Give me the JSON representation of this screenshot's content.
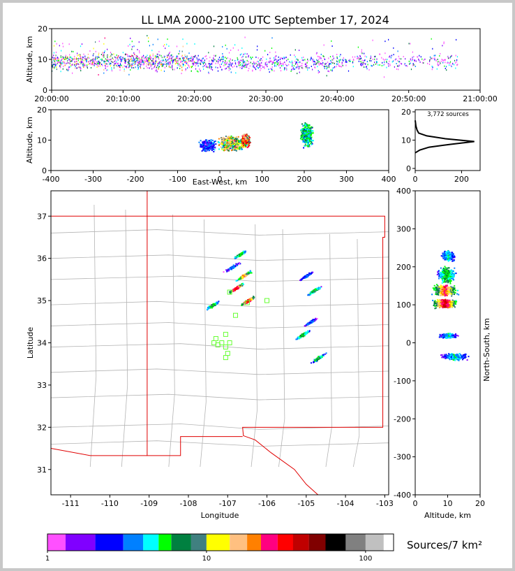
{
  "title": "LL LMA 2000-2100 UTC September 17, 2024",
  "colorbar": {
    "label": "Sources/7 km²",
    "tick_labels": [
      "1",
      "10",
      "100"
    ],
    "colors": [
      "#ff50ff",
      "#8000ff",
      "#0000ff",
      "#0080ff",
      "#00ffff",
      "#00ff00",
      "#008040",
      "#408080",
      "#ffff00",
      "#ffc080",
      "#ff8000",
      "#ff0080",
      "#ff0000",
      "#c00000",
      "#800000",
      "#000000",
      "#808080",
      "#c0c0c0",
      "#ffffff"
    ]
  },
  "chart_data": [
    {
      "type": "scatter",
      "panel": "time-height",
      "ylabel": "Altitude, km",
      "xlabel": "",
      "x_tick_labels": [
        "20:00:00",
        "20:10:00",
        "20:20:00",
        "20:30:00",
        "20:40:00",
        "20:50:00",
        "21:00:00"
      ],
      "xlim": [
        "20:00:00",
        "21:00:00"
      ],
      "ylim": [
        0,
        20
      ],
      "y_ticks": [
        0,
        10,
        20
      ],
      "grid": false,
      "activity_minutes": [
        {
          "start": 0,
          "end": 20,
          "alt_center": 9.5,
          "density": "high"
        },
        {
          "start": 20,
          "end": 40,
          "alt_center": 9.0,
          "density": "medium"
        },
        {
          "start": 40,
          "end": 57,
          "alt_center": 9.5,
          "density": "low"
        }
      ]
    },
    {
      "type": "scatter",
      "panel": "east-west-altitude",
      "ylabel": "Altitude, km",
      "xlabel": "East-West, km",
      "xlim": [
        -400,
        400
      ],
      "ylim": [
        0,
        20
      ],
      "x_ticks": [
        -400,
        -300,
        -200,
        -100,
        0,
        100,
        200,
        300,
        400
      ],
      "y_ticks": [
        0,
        10,
        20
      ],
      "clusters": [
        {
          "x": -30,
          "alt": 8.5,
          "spread_x": 20,
          "spread_alt": 2,
          "level": "low"
        },
        {
          "x": 25,
          "alt": 9.0,
          "spread_x": 30,
          "spread_alt": 2.5,
          "level": "high"
        },
        {
          "x": 60,
          "alt": 10.0,
          "spread_x": 10,
          "spread_alt": 2,
          "level": "very high"
        },
        {
          "x": 205,
          "alt": 12.0,
          "spread_x": 15,
          "spread_alt": 4,
          "level": "medium"
        }
      ]
    },
    {
      "type": "line",
      "panel": "altitude-histogram",
      "annotation": "3,772 sources",
      "xlim": [
        0,
        280
      ],
      "ylim": [
        0,
        20
      ],
      "x_ticks": [
        0,
        200
      ],
      "y_ticks": [
        0,
        10,
        20
      ],
      "profile": [
        {
          "alt": 5.5,
          "count": 0
        },
        {
          "alt": 6.5,
          "count": 20
        },
        {
          "alt": 7.5,
          "count": 60
        },
        {
          "alt": 8.5,
          "count": 150
        },
        {
          "alt": 9.5,
          "count": 255
        },
        {
          "alt": 10.5,
          "count": 130
        },
        {
          "alt": 11.5,
          "count": 50
        },
        {
          "alt": 12.5,
          "count": 15
        },
        {
          "alt": 13.5,
          "count": 8
        },
        {
          "alt": 15.0,
          "count": 3
        },
        {
          "alt": 17.0,
          "count": 0
        }
      ]
    },
    {
      "type": "heatmap",
      "panel": "plan-view",
      "xlabel": "Longitude",
      "ylabel": "Latitude",
      "xlim": [
        -111.5,
        -102.9
      ],
      "ylim": [
        30.4,
        37.6
      ],
      "x_ticks": [
        -111,
        -110,
        -109,
        -108,
        -107,
        -106,
        -105,
        -104,
        -103
      ],
      "y_ticks": [
        31,
        32,
        33,
        34,
        35,
        36,
        37
      ],
      "storm_cells": [
        {
          "lon": -106.7,
          "lat": 36.1,
          "level": "medium"
        },
        {
          "lon": -106.9,
          "lat": 35.8,
          "level": "low"
        },
        {
          "lon": -106.6,
          "lat": 35.6,
          "level": "high"
        },
        {
          "lon": -106.8,
          "lat": 35.3,
          "level": "very high"
        },
        {
          "lon": -107.4,
          "lat": 34.9,
          "level": "medium"
        },
        {
          "lon": -106.5,
          "lat": 35.0,
          "level": "very high"
        },
        {
          "lon": -105.0,
          "lat": 35.6,
          "level": "low"
        },
        {
          "lon": -104.8,
          "lat": 35.25,
          "level": "medium"
        },
        {
          "lon": -104.9,
          "lat": 34.5,
          "level": "low"
        },
        {
          "lon": -105.1,
          "lat": 34.2,
          "level": "medium"
        },
        {
          "lon": -104.7,
          "lat": 33.65,
          "level": "medium"
        }
      ],
      "stations": [
        [
          -106.95,
          35.2
        ],
        [
          -106.5,
          34.95
        ],
        [
          -106.0,
          35.0
        ],
        [
          -106.8,
          34.65
        ],
        [
          -107.3,
          34.1
        ],
        [
          -107.05,
          34.2
        ],
        [
          -107.35,
          34.0
        ],
        [
          -107.15,
          34.0
        ],
        [
          -106.95,
          34.0
        ],
        [
          -107.05,
          33.9
        ],
        [
          -107.0,
          33.75
        ],
        [
          -107.05,
          33.65
        ],
        [
          -107.25,
          33.95
        ]
      ]
    },
    {
      "type": "heatmap",
      "panel": "altitude-north-south",
      "xlabel": "Altitude, km",
      "ylabel": "North-South, km",
      "xlim": [
        0,
        20
      ],
      "ylim": [
        -400,
        400
      ],
      "x_ticks": [
        0,
        10,
        20
      ],
      "y_ticks": [
        -400,
        -300,
        -200,
        -100,
        0,
        100,
        200,
        300,
        400
      ]
    }
  ]
}
